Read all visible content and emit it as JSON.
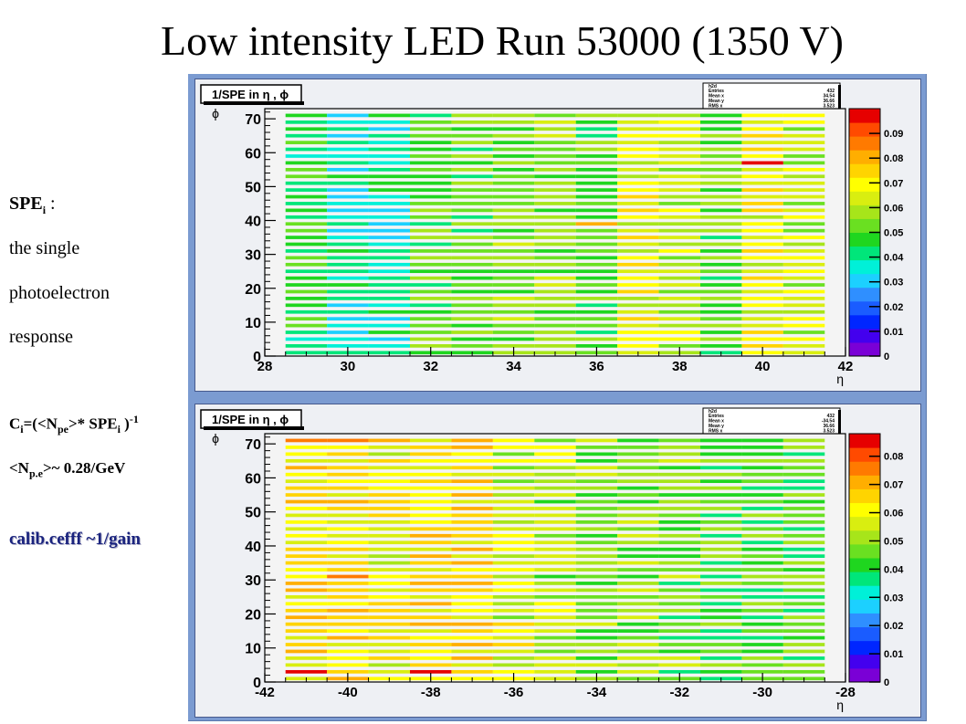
{
  "slide": {
    "title": "Low intensity LED Run 53000 (1350 V)",
    "notes": {
      "spe_label": "SPE",
      "spe_sub": "i",
      "spe_colon": " :",
      "line1": "the single",
      "line2": "photoelectron",
      "line3": "response",
      "formula_c": "C",
      "formula_c_sub": "i",
      "formula_mid": "=(<N",
      "formula_pe_sub": "pe",
      "formula_mid2": ">* SPE",
      "formula_spe_sub": "i",
      "formula_close": " )",
      "formula_exp": "-1",
      "npe_open": "<N",
      "npe_sub": "p.e",
      "npe_rest": ">~ 0.28/GeV",
      "calib": "calib.cefff ~1/gain"
    }
  },
  "chart_data": [
    {
      "type": "heatmap",
      "title": "1/SPE in η , ϕ",
      "xlabel": "η",
      "ylabel": "ϕ",
      "xlim": [
        28,
        42
      ],
      "ylim": [
        0,
        73
      ],
      "x_ticks": [
        "28",
        "30",
        "32",
        "34",
        "36",
        "38",
        "40",
        "42"
      ],
      "y_ticks": [
        "0",
        "10",
        "20",
        "30",
        "40",
        "50",
        "60",
        "70"
      ],
      "x_bins": [
        29,
        30,
        31,
        32,
        33,
        34,
        35,
        36,
        37,
        38,
        39,
        40,
        41
      ],
      "y_bins": [
        1,
        72
      ],
      "colorbar": {
        "min": 0,
        "max": 0.1,
        "ticks": [
          "0",
          "0.01",
          "0.02",
          "0.03",
          "0.04",
          "0.05",
          "0.06",
          "0.07",
          "0.08",
          "0.09"
        ]
      },
      "column_mean_values": [
        0.046,
        0.04,
        0.038,
        0.05,
        0.052,
        0.053,
        0.054,
        0.052,
        0.066,
        0.06,
        0.052,
        0.068,
        0.062
      ],
      "hot_cells": [
        {
          "x": 33,
          "y": 62,
          "value": 0.085
        },
        {
          "x": 40,
          "y": 57,
          "value": 0.095
        },
        {
          "x": 33,
          "y": 34,
          "value": 0.082
        },
        {
          "x": 35,
          "y": 34,
          "value": 0.082
        },
        {
          "x": 36,
          "y": 39,
          "value": 0.08
        },
        {
          "x": 35,
          "y": 46,
          "value": 0.076
        },
        {
          "x": 37,
          "y": 52,
          "value": 0.072
        },
        {
          "x": 41,
          "y": 25,
          "value": 0.072
        },
        {
          "x": 37,
          "y": 60,
          "value": 0.07
        },
        {
          "x": 29,
          "y": 42,
          "value": 0.03
        },
        {
          "x": 30,
          "y": 71,
          "value": 0.03
        }
      ],
      "stats_box": {
        "name": "h2d",
        "entries_label": "Entries",
        "entries": "432",
        "meanx_label": "Mean x",
        "meanx": "34.54",
        "meany_label": "Mean y",
        "meany": "36.66",
        "rmsx_label": "RMS x",
        "rmsx": "3.523",
        "rmsy_label": "RMS y",
        "rmsy": "20.78"
      }
    },
    {
      "type": "heatmap",
      "title": "1/SPE in η , ϕ",
      "xlabel": "η",
      "ylabel": "ϕ",
      "xlim": [
        -42,
        -28
      ],
      "ylim": [
        0,
        73
      ],
      "x_ticks": [
        "-42",
        "-40",
        "-38",
        "-36",
        "-34",
        "-32",
        "-30",
        "-28"
      ],
      "y_ticks": [
        "0",
        "10",
        "20",
        "30",
        "40",
        "50",
        "60",
        "70"
      ],
      "x_bins": [
        -41,
        -40,
        -39,
        -38,
        -37,
        -36,
        -35,
        -34,
        -33,
        -32,
        -31,
        -30,
        -29
      ],
      "y_bins": [
        1,
        72
      ],
      "colorbar": {
        "min": 0,
        "max": 0.088,
        "ticks": [
          "0",
          "0.01",
          "0.02",
          "0.03",
          "0.04",
          "0.05",
          "0.06",
          "0.07",
          "0.08"
        ]
      },
      "column_mean_values": [
        0.062,
        0.066,
        0.06,
        0.062,
        0.064,
        0.055,
        0.052,
        0.05,
        0.048,
        0.046,
        0.044,
        0.044,
        0.045
      ],
      "hot_cells": [
        {
          "x": -41,
          "y": 56,
          "value": 0.088
        },
        {
          "x": -41,
          "y": 3,
          "value": 0.088
        },
        {
          "x": -38,
          "y": 54,
          "value": 0.086
        },
        {
          "x": -38,
          "y": 38,
          "value": 0.086
        },
        {
          "x": -39,
          "y": 14,
          "value": 0.086
        },
        {
          "x": -38,
          "y": 3,
          "value": 0.086
        },
        {
          "x": -37,
          "y": 6,
          "value": 0.084
        },
        {
          "x": -39,
          "y": 44,
          "value": 0.08
        },
        {
          "x": -39,
          "y": 8,
          "value": 0.08
        },
        {
          "x": -41,
          "y": 71,
          "value": 0.076
        }
      ],
      "stats_box": {
        "name": "h2d",
        "entries_label": "Entries",
        "entries": "432",
        "meanx_label": "Mean x",
        "meanx": "-34.54",
        "meany_label": "Mean y",
        "meany": "36.66",
        "rmsx_label": "RMS x",
        "rmsx": "3.523",
        "rmsy_label": "RMS y",
        "rmsy": "20.78"
      }
    }
  ]
}
